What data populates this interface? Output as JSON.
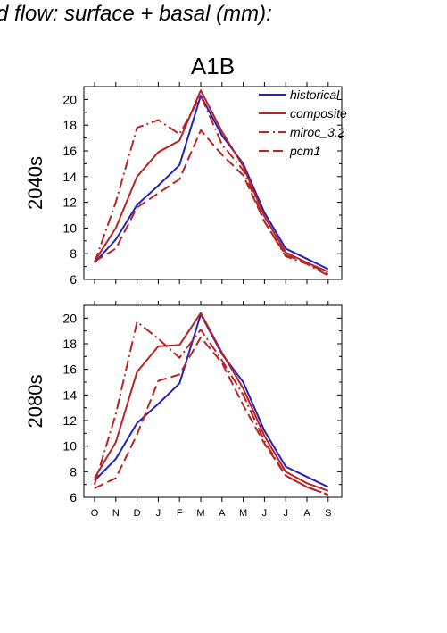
{
  "page_title": "d flow: surface + basal (mm):",
  "colors": {
    "historical": "#2222bb",
    "composite": "#bb2222",
    "miroc_3.2": "#bb2222",
    "pcm1": "#bb2222",
    "axis": "#000000"
  },
  "chart_data": [
    {
      "type": "line",
      "title": "A1B",
      "ylabel": "2040s",
      "xlabel": "",
      "categories": [
        "O",
        "N",
        "D",
        "J",
        "F",
        "M",
        "A",
        "M",
        "J",
        "J",
        "A",
        "S"
      ],
      "ylim": [
        6,
        21
      ],
      "yticks": [
        6,
        8,
        10,
        12,
        14,
        16,
        18,
        20
      ],
      "grid": false,
      "legend": "top-right",
      "series": [
        {
          "name": "historical",
          "dash": "solid",
          "values": [
            7.3,
            9.1,
            11.8,
            13.3,
            14.9,
            20.3,
            17.2,
            15.0,
            11.2,
            8.4,
            7.6,
            6.8
          ]
        },
        {
          "name": "composite",
          "dash": "solid",
          "values": [
            7.4,
            10.0,
            14.0,
            15.9,
            16.8,
            20.7,
            17.5,
            14.8,
            10.9,
            8.1,
            7.3,
            6.6
          ]
        },
        {
          "name": "miroc_3.2",
          "dash": "dashdot",
          "values": [
            7.3,
            12.0,
            17.8,
            18.4,
            17.3,
            20.3,
            16.5,
            14.5,
            10.5,
            7.8,
            7.2,
            6.3
          ]
        },
        {
          "name": "pcm1",
          "dash": "dash",
          "values": [
            7.4,
            8.4,
            11.6,
            12.7,
            13.8,
            17.6,
            15.7,
            14.1,
            10.5,
            7.9,
            7.3,
            6.4
          ]
        }
      ]
    },
    {
      "type": "line",
      "title": "",
      "ylabel": "2080s",
      "xlabel": "",
      "categories": [
        "O",
        "N",
        "D",
        "J",
        "F",
        "M",
        "A",
        "M",
        "J",
        "J",
        "A",
        "S"
      ],
      "ylim": [
        6,
        21
      ],
      "yticks": [
        6,
        8,
        10,
        12,
        14,
        16,
        18,
        20
      ],
      "grid": false,
      "legend": "",
      "series": [
        {
          "name": "historical",
          "dash": "solid",
          "values": [
            7.3,
            9.0,
            11.8,
            13.3,
            14.9,
            20.3,
            17.2,
            15.0,
            11.2,
            8.4,
            7.6,
            6.8
          ]
        },
        {
          "name": "composite",
          "dash": "solid",
          "values": [
            7.5,
            10.3,
            15.8,
            17.8,
            17.9,
            20.4,
            17.3,
            14.5,
            10.8,
            8.0,
            7.1,
            6.5
          ]
        },
        {
          "name": "miroc_3.2",
          "dash": "dashdot",
          "values": [
            7.0,
            12.5,
            19.7,
            18.4,
            16.9,
            19.1,
            16.7,
            14.0,
            10.4,
            7.7,
            6.8,
            6.2
          ]
        },
        {
          "name": "pcm1",
          "dash": "dash",
          "values": [
            6.7,
            7.5,
            10.9,
            15.1,
            15.6,
            18.5,
            16.5,
            13.2,
            10.2,
            7.7,
            6.8,
            6.2
          ]
        }
      ]
    }
  ]
}
